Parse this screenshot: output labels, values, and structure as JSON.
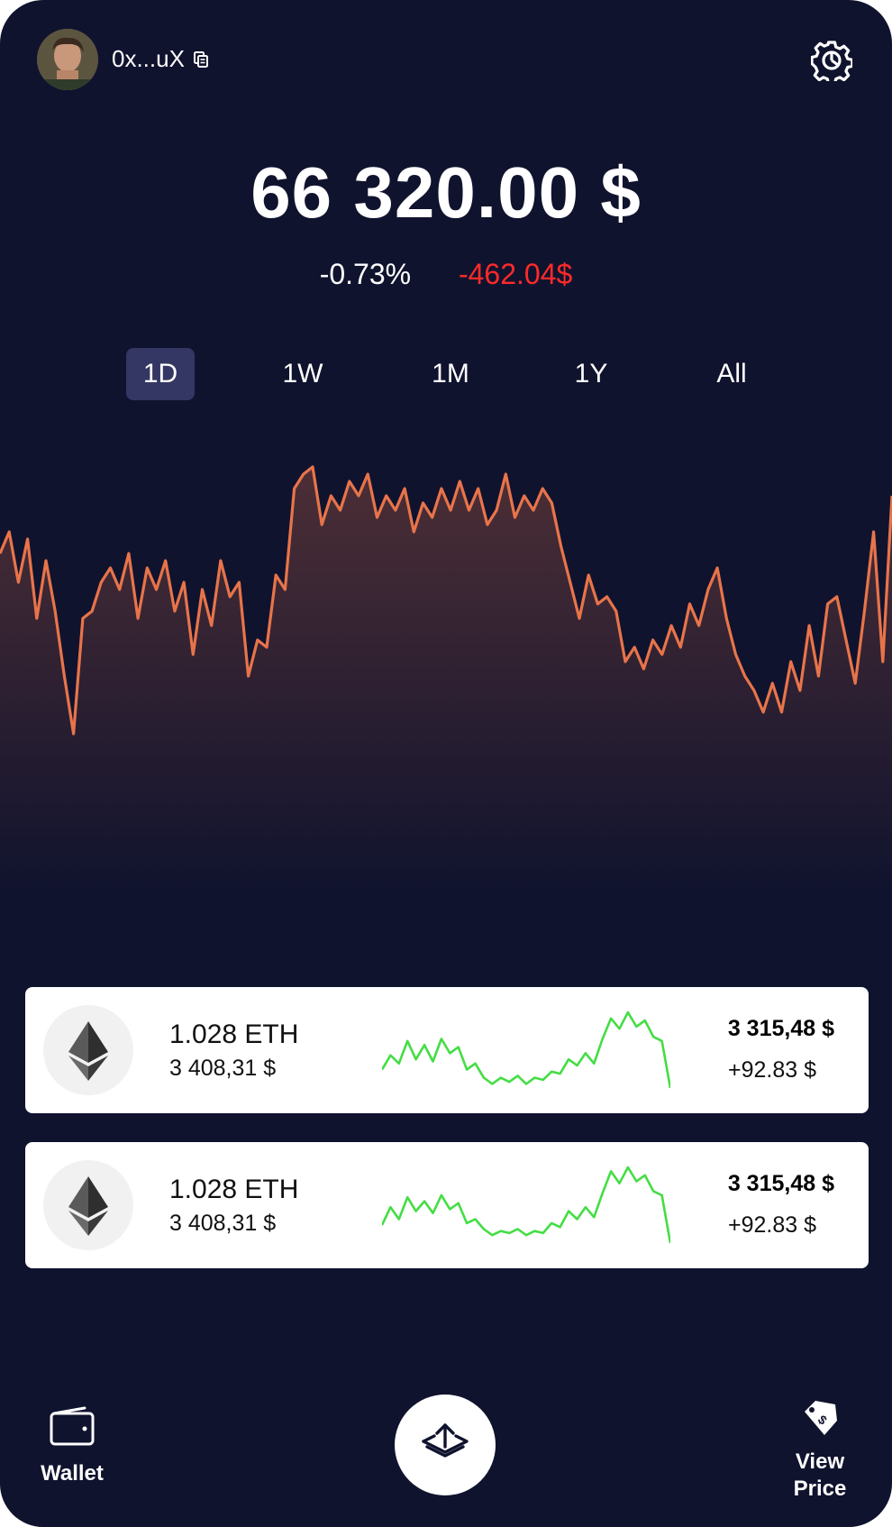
{
  "header": {
    "address": "0x...uX"
  },
  "portfolio": {
    "balance": "66 320.00 $",
    "change_percent": "-0.73%",
    "change_amount": "-462.04$"
  },
  "ranges": [
    {
      "label": "1D",
      "active": true
    },
    {
      "label": "1W",
      "active": false
    },
    {
      "label": "1M",
      "active": false
    },
    {
      "label": "1Y",
      "active": false
    },
    {
      "label": "All",
      "active": false
    }
  ],
  "colors": {
    "background": "#10132e",
    "chart_line": "#e8744a",
    "negative": "#ff2a2a",
    "sparkline": "#44dd44",
    "active_range": "#343763"
  },
  "chart_data": {
    "type": "line",
    "title": "",
    "xlabel": "",
    "ylabel": "",
    "ylim": [
      0,
      100
    ],
    "series": [
      {
        "values": [
          74,
          80,
          66,
          78,
          56,
          72,
          58,
          40,
          24,
          56,
          58,
          66,
          70,
          64,
          74,
          56,
          70,
          64,
          72,
          58,
          66,
          46,
          64,
          54,
          72,
          62,
          66,
          40,
          50,
          48,
          68,
          64,
          92,
          96,
          98,
          82,
          90,
          86,
          94,
          90,
          96,
          84,
          90,
          86,
          92,
          80,
          88,
          84,
          92,
          86,
          94,
          86,
          92,
          82,
          86,
          96,
          84,
          90,
          86,
          92,
          88,
          76,
          66,
          56,
          68,
          60,
          62,
          58,
          44,
          48,
          42,
          50,
          46,
          54,
          48,
          60,
          54,
          64,
          70,
          56,
          46,
          40,
          36,
          30,
          38,
          30,
          44,
          36,
          54,
          40,
          60,
          62,
          50,
          38,
          58,
          80,
          44,
          90
        ]
      }
    ]
  },
  "assets": [
    {
      "amount": "1.028 ETH",
      "fiat": "3 408,31 $",
      "value": "3 315,48 $",
      "gain": "+92.83 $",
      "spark": [
        30,
        44,
        36,
        58,
        40,
        54,
        38,
        60,
        46,
        52,
        30,
        36,
        22,
        16,
        22,
        18,
        24,
        16,
        22,
        20,
        28,
        26,
        40,
        34,
        46,
        36,
        60,
        80,
        70,
        86,
        72,
        78,
        62,
        58,
        12
      ]
    },
    {
      "amount": "1.028 ETH",
      "fiat": "3 408,31 $",
      "value": "3 315,48 $",
      "gain": "+92.83 $",
      "spark": [
        28,
        46,
        34,
        56,
        42,
        52,
        40,
        58,
        44,
        50,
        30,
        34,
        24,
        18,
        22,
        20,
        24,
        18,
        22,
        20,
        30,
        26,
        42,
        34,
        46,
        36,
        60,
        82,
        70,
        86,
        72,
        78,
        62,
        58,
        10
      ]
    }
  ],
  "nav": {
    "wallet_label": "Wallet",
    "price_line1": "View",
    "price_line2": "Price"
  }
}
